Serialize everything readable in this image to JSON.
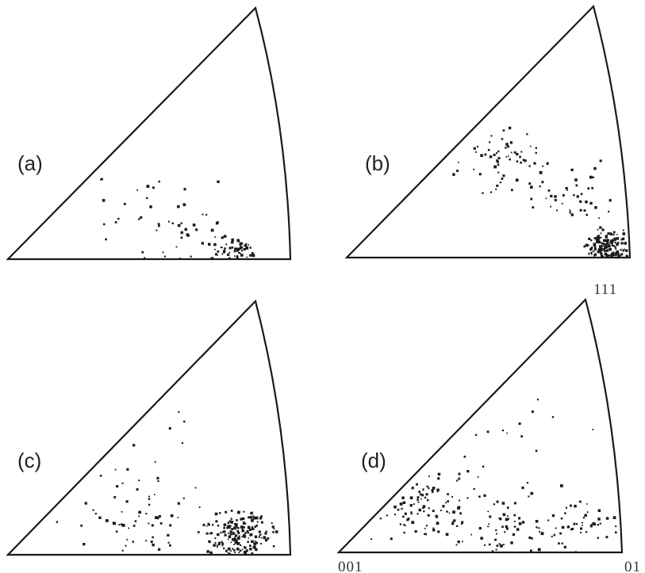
{
  "panels": [
    {
      "id": "a",
      "label": "(a)"
    },
    {
      "id": "b",
      "label": "(b)"
    },
    {
      "id": "c",
      "label": "(c)"
    },
    {
      "id": "d",
      "label": "(d)"
    }
  ],
  "corner_labels": {
    "top": "111",
    "bottom_left": "001",
    "bottom_right": "01"
  }
}
